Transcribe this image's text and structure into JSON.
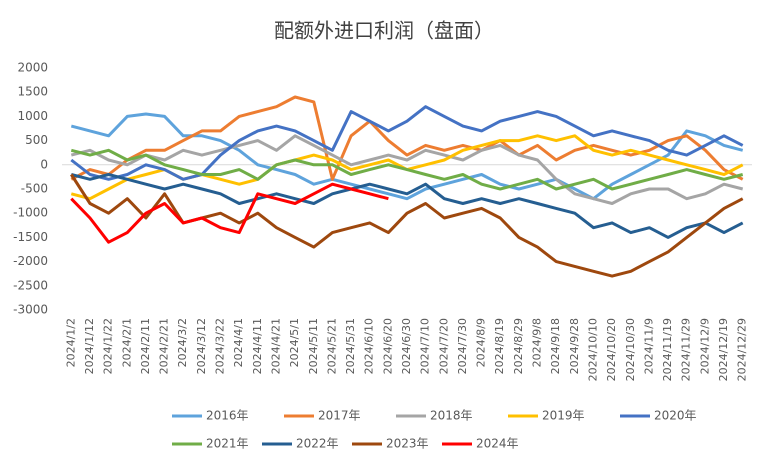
{
  "chart_data": {
    "type": "line",
    "title": "配额外进口利润（盘面）",
    "categories": [
      "2024/1/2",
      "2024/1/12",
      "2024/1/22",
      "2024/2/1",
      "2024/2/11",
      "2024/2/21",
      "2024/3/2",
      "2024/3/12",
      "2024/3/22",
      "2024/4/1",
      "2024/4/11",
      "2024/4/21",
      "2024/5/1",
      "2024/5/11",
      "2024/5/21",
      "2024/5/31",
      "2024/6/10",
      "2024/6/20",
      "2024/6/30",
      "2024/7/10",
      "2024/7/20",
      "2024/7/30",
      "2024/8/9",
      "2024/8/19",
      "2024/8/29",
      "2024/9/8",
      "2024/9/18",
      "2024/9/28",
      "2024/10/10",
      "2024/10/20",
      "2024/10/30",
      "2024/11/9",
      "2024/11/19",
      "2024/11/29",
      "2024/12/9",
      "2024/12/19",
      "2024/12/29"
    ],
    "ylim": [
      -3000,
      2000
    ],
    "yticks": [
      -3000,
      -2500,
      -2000,
      -1500,
      -1000,
      -500,
      0,
      500,
      1000,
      1500,
      2000
    ],
    "series": [
      {
        "name": "2016年",
        "color": "#5ea3dc",
        "values": [
          800,
          700,
          600,
          1000,
          1050,
          1000,
          600,
          600,
          500,
          300,
          0,
          -100,
          -200,
          -400,
          -300,
          -400,
          -500,
          -600,
          -700,
          -500,
          -400,
          -300,
          -200,
          -400,
          -500,
          -400,
          -300,
          -500,
          -700,
          -400,
          -200,
          0,
          200,
          700,
          600,
          400,
          300
        ]
      },
      {
        "name": "2017年",
        "color": "#ed7d31",
        "values": [
          -300,
          -100,
          -200,
          100,
          300,
          300,
          500,
          700,
          700,
          1000,
          1100,
          1200,
          1400,
          1300,
          -300,
          600,
          900,
          500,
          200,
          400,
          300,
          400,
          300,
          500,
          200,
          400,
          100,
          300,
          400,
          300,
          200,
          300,
          500,
          600,
          300,
          -100,
          -300
        ]
      },
      {
        "name": "2018年",
        "color": "#a5a5a5",
        "values": [
          200,
          300,
          100,
          0,
          200,
          100,
          300,
          200,
          300,
          400,
          500,
          300,
          600,
          400,
          200,
          0,
          100,
          200,
          100,
          300,
          200,
          100,
          300,
          400,
          200,
          100,
          -300,
          -600,
          -700,
          -800,
          -600,
          -500,
          -500,
          -700,
          -600,
          -400,
          -500
        ]
      },
      {
        "name": "2019年",
        "color": "#ffc000",
        "values": [
          -600,
          -700,
          -500,
          -300,
          -200,
          -100,
          -300,
          -200,
          -300,
          -400,
          -300,
          0,
          100,
          200,
          100,
          -100,
          0,
          100,
          -100,
          0,
          100,
          300,
          400,
          500,
          500,
          600,
          500,
          600,
          300,
          200,
          300,
          200,
          100,
          0,
          -100,
          -200,
          0
        ]
      },
      {
        "name": "2020年",
        "color": "#4472c4",
        "values": [
          100,
          -200,
          -300,
          -200,
          0,
          -100,
          -300,
          -200,
          200,
          500,
          700,
          800,
          700,
          500,
          300,
          1100,
          900,
          700,
          900,
          1200,
          1000,
          800,
          700,
          900,
          1000,
          1100,
          1000,
          800,
          600,
          700,
          600,
          500,
          300,
          200,
          400,
          600,
          400
        ]
      },
      {
        "name": "2021年",
        "color": "#70ad47",
        "values": [
          300,
          200,
          300,
          100,
          200,
          0,
          -100,
          -200,
          -200,
          -100,
          -300,
          0,
          100,
          0,
          0,
          -200,
          -100,
          0,
          -100,
          -200,
          -300,
          -200,
          -400,
          -500,
          -400,
          -300,
          -500,
          -400,
          -300,
          -500,
          -400,
          -300,
          -200,
          -100,
          -200,
          -300,
          -200
        ]
      },
      {
        "name": "2022年",
        "color": "#255e91",
        "values": [
          -200,
          -300,
          -200,
          -300,
          -400,
          -500,
          -400,
          -500,
          -600,
          -800,
          -700,
          -600,
          -700,
          -800,
          -600,
          -500,
          -400,
          -500,
          -600,
          -400,
          -700,
          -800,
          -700,
          -800,
          -700,
          -800,
          -900,
          -1000,
          -1300,
          -1200,
          -1400,
          -1300,
          -1500,
          -1300,
          -1200,
          -1400,
          -1200
        ]
      },
      {
        "name": "2023年",
        "color": "#9e480e",
        "values": [
          -200,
          -800,
          -1000,
          -700,
          -1100,
          -600,
          -1200,
          -1100,
          -1000,
          -1200,
          -1000,
          -1300,
          -1500,
          -1700,
          -1400,
          -1300,
          -1200,
          -1400,
          -1000,
          -800,
          -1100,
          -1000,
          -900,
          -1100,
          -1500,
          -1700,
          -2000,
          -2100,
          -2200,
          -2300,
          -2200,
          -2000,
          -1800,
          -1500,
          -1200,
          -900,
          -700
        ]
      },
      {
        "name": "2024年",
        "color": "#ff0000",
        "values": [
          -700,
          -1100,
          -1600,
          -1400,
          -1000,
          -800,
          -1200,
          -1100,
          -1300,
          -1400,
          -600,
          -700,
          -800,
          -600,
          -400,
          -500,
          -600,
          -700,
          null,
          null,
          null,
          null,
          null,
          null,
          null,
          null,
          null,
          null,
          null,
          null,
          null,
          null,
          null,
          null,
          null,
          null,
          null
        ]
      }
    ]
  }
}
